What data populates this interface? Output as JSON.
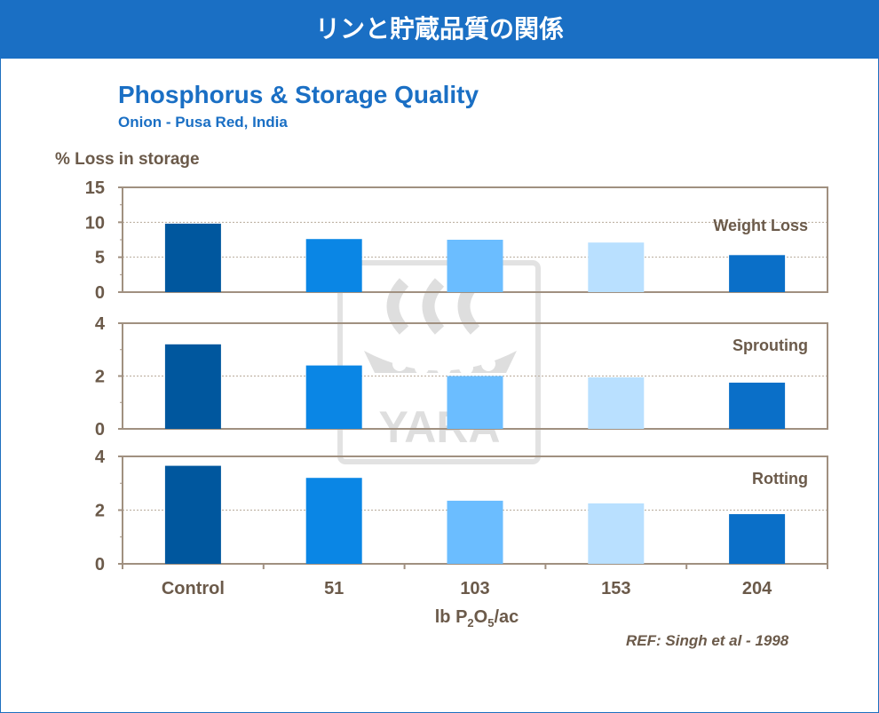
{
  "header": {
    "title": "リンと貯蔵品質の関係"
  },
  "colors": {
    "header_bg": "#1a6fc4",
    "title": "#1a6fc4",
    "text": "#6b5a4a",
    "bars": [
      "#00579e",
      "#0a86e5",
      "#6bbdff",
      "#b9e0ff",
      "#0a6fc8"
    ]
  },
  "watermark": "YARA",
  "ref": "REF: Singh et al - 1998",
  "chart_data": {
    "type": "bar",
    "title": "Phosphorus & Storage Quality",
    "subtitle": "Onion - Pusa Red, India",
    "ylabel": "% Loss in storage",
    "xlabel": {
      "main": "lb P",
      "sub1": "2",
      "mid": "O",
      "sub2": "5",
      "end": "/ac"
    },
    "categories": [
      "Control",
      "51",
      "103",
      "153",
      "204"
    ],
    "panels": [
      {
        "name": "Weight Loss",
        "ylim": [
          0,
          15
        ],
        "ticks": [
          0,
          5,
          10,
          15
        ],
        "values": [
          9.8,
          7.6,
          7.5,
          7.1,
          5.3
        ]
      },
      {
        "name": "Sprouting",
        "ylim": [
          0,
          4
        ],
        "ticks": [
          0,
          2,
          4
        ],
        "values": [
          3.2,
          2.4,
          2.0,
          1.95,
          1.75
        ]
      },
      {
        "name": "Rotting",
        "ylim": [
          0,
          4
        ],
        "ticks": [
          0,
          2,
          4
        ],
        "values": [
          3.65,
          3.2,
          2.35,
          2.25,
          1.85
        ]
      }
    ]
  }
}
